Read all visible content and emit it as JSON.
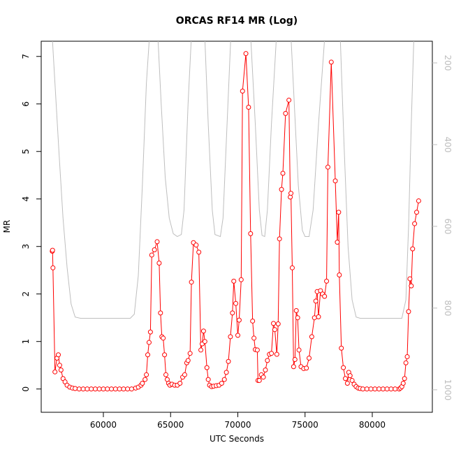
{
  "chart_data": {
    "type": "line",
    "title": "ORCAS RF14 MR (Log)",
    "x_label": "UTC Seconds",
    "y_label": "MR",
    "xlim": [
      55377,
      84468
    ],
    "xticks": [
      60000,
      65000,
      70000,
      75000,
      80000
    ],
    "ylim": [
      -0.49,
      7.32
    ],
    "yticks": [
      0,
      1,
      2,
      3,
      4,
      5,
      6,
      7
    ],
    "y2lim": [
      1055,
      147
    ],
    "y2ticks": [
      200,
      400,
      600,
      800,
      1000
    ],
    "series": [
      {
        "color": "#ff0000",
        "marker": "circle",
        "x": [
          56200,
          56220,
          56250,
          56400,
          56550,
          56650,
          56750,
          56850,
          57000,
          57150,
          57300,
          57500,
          57700,
          57900,
          58200,
          58500,
          58800,
          59100,
          59400,
          59700,
          60000,
          60300,
          60600,
          60900,
          61200,
          61500,
          61800,
          62100,
          62400,
          62600,
          62800,
          62900,
          63100,
          63200,
          63300,
          63400,
          63500,
          63600,
          63800,
          64000,
          64150,
          64250,
          64350,
          64450,
          64550,
          64650,
          64750,
          64850,
          64950,
          65100,
          65300,
          65500,
          65700,
          65900,
          66050,
          66200,
          66300,
          66450,
          66550,
          66700,
          66900,
          67100,
          67250,
          67350,
          67450,
          67550,
          67700,
          67800,
          67900,
          68050,
          68200,
          68400,
          68600,
          68800,
          69000,
          69150,
          69300,
          69450,
          69600,
          69700,
          69850,
          70000,
          70100,
          70250,
          70350,
          70600,
          70800,
          70950,
          71100,
          71200,
          71300,
          71450,
          71500,
          71600,
          71750,
          71900,
          72050,
          72200,
          72350,
          72500,
          72650,
          72750,
          72900,
          73000,
          73100,
          73250,
          73350,
          73550,
          73800,
          73900,
          73950,
          74050,
          74150,
          74250,
          74350,
          74450,
          74550,
          74700,
          74900,
          75100,
          75300,
          75500,
          75700,
          75800,
          75900,
          76000,
          76150,
          76300,
          76450,
          76600,
          76700,
          76950,
          77250,
          77400,
          77500,
          77550,
          77700,
          77850,
          78000,
          78150,
          78250,
          78350,
          78500,
          78650,
          78800,
          78950,
          79100,
          79300,
          79600,
          79900,
          80200,
          80500,
          80800,
          81100,
          81400,
          81700,
          82000,
          82100,
          82200,
          82300,
          82400,
          82500,
          82600,
          82700,
          82800,
          82900,
          83000,
          83150,
          83300,
          83450
        ],
        "values": [
          2.9,
          2.92,
          2.55,
          0.36,
          0.65,
          0.72,
          0.5,
          0.4,
          0.22,
          0.15,
          0.08,
          0.04,
          0.02,
          0.01,
          0,
          0,
          0,
          0,
          0,
          0,
          0,
          0,
          0,
          0,
          0,
          0,
          0,
          0,
          0.02,
          0.04,
          0.08,
          0.12,
          0.2,
          0.3,
          0.72,
          0.98,
          1.2,
          2.82,
          2.93,
          3.1,
          2.65,
          1.6,
          1.1,
          1.07,
          0.72,
          0.3,
          0.2,
          0.12,
          0.08,
          0.1,
          0.08,
          0.08,
          0.12,
          0.25,
          0.3,
          0.55,
          0.6,
          0.75,
          2.25,
          3.08,
          3.03,
          2.88,
          0.82,
          0.95,
          1.22,
          1.0,
          0.45,
          0.2,
          0.08,
          0.05,
          0.06,
          0.07,
          0.08,
          0.12,
          0.2,
          0.35,
          0.58,
          1.1,
          1.6,
          2.27,
          1.8,
          1.13,
          1.45,
          2.3,
          6.27,
          7.06,
          5.93,
          3.27,
          1.43,
          1.07,
          0.83,
          0.82,
          0.18,
          0.18,
          0.3,
          0.25,
          0.4,
          0.6,
          0.73,
          0.75,
          1.38,
          1.25,
          0.73,
          1.37,
          3.16,
          4.2,
          4.54,
          5.8,
          6.08,
          4.04,
          4.12,
          2.55,
          0.47,
          0.62,
          1.65,
          1.5,
          0.82,
          0.47,
          0.43,
          0.44,
          0.65,
          1.1,
          1.5,
          1.85,
          2.05,
          1.52,
          2.07,
          2.0,
          1.95,
          2.27,
          4.67,
          6.88,
          4.38,
          3.09,
          3.72,
          2.4,
          0.86,
          0.45,
          0.22,
          0.12,
          0.35,
          0.28,
          0.18,
          0.1,
          0.05,
          0.02,
          0.01,
          0,
          0,
          0,
          0,
          0,
          0,
          0,
          0,
          0,
          0,
          0.02,
          0.05,
          0.12,
          0.22,
          0.55,
          0.68,
          1.63,
          2.32,
          2.17,
          2.95,
          3.48,
          3.72,
          3.96
        ]
      },
      {
        "color": "#bebebe",
        "axis": "y2",
        "x": [
          56100,
          56400,
          56700,
          57000,
          57300,
          57600,
          57900,
          58300,
          62000,
          62300,
          62600,
          62900,
          63200,
          63500,
          64000,
          64300,
          64600,
          64900,
          65200,
          65500,
          65800,
          66000,
          66300,
          66600,
          67500,
          67800,
          68100,
          68300,
          68700,
          68900,
          69200,
          69500,
          70900,
          71300,
          71600,
          71800,
          72000,
          72200,
          72500,
          72900,
          73900,
          74200,
          74500,
          74800,
          75000,
          75300,
          75600,
          76000,
          76500,
          77600,
          77900,
          78200,
          78500,
          78800,
          79100,
          82200,
          82500,
          82700,
          82900,
          83100
        ],
        "values": [
          80,
          250,
          420,
          580,
          700,
          790,
          822,
          825,
          825,
          815,
          720,
          500,
          250,
          100,
          100,
          300,
          480,
          580,
          618,
          625,
          620,
          560,
          300,
          100,
          100,
          350,
          560,
          620,
          625,
          580,
          350,
          120,
          100,
          350,
          560,
          622,
          625,
          560,
          350,
          120,
          100,
          300,
          500,
          610,
          625,
          625,
          560,
          350,
          120,
          120,
          400,
          650,
          780,
          822,
          825,
          825,
          780,
          600,
          350,
          130
        ]
      }
    ]
  }
}
